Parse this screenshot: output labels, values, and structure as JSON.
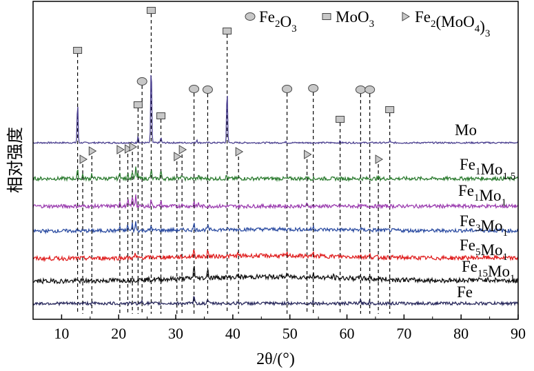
{
  "chart_data": {
    "type": "line",
    "title": "",
    "xlabel": "2θ/(°)",
    "ylabel": "相对强度",
    "xlim": [
      5,
      90
    ],
    "xticks": [
      10,
      20,
      30,
      40,
      50,
      60,
      70,
      80,
      90
    ],
    "yticks_shown": false,
    "grid": false,
    "legend_position": "top-right",
    "legend": [
      {
        "marker": "circle",
        "name": "Fe2O3",
        "parts": [
          [
            "Fe",
            ""
          ],
          [
            "2",
            "sub"
          ],
          [
            "O",
            ""
          ],
          [
            "3",
            "sub"
          ]
        ]
      },
      {
        "marker": "square",
        "name": "MoO3",
        "parts": [
          [
            "MoO",
            ""
          ],
          [
            "3",
            "sub"
          ]
        ]
      },
      {
        "marker": "triangle",
        "name": "Fe2(MoO4)3",
        "parts": [
          [
            "Fe",
            ""
          ],
          [
            "2",
            "sub"
          ],
          [
            "(MoO",
            ""
          ],
          [
            "4",
            "sub"
          ],
          [
            ")",
            ""
          ],
          [
            "3",
            "sub"
          ]
        ]
      }
    ],
    "series": [
      {
        "name": "Mo",
        "parts": [
          [
            "Mo",
            ""
          ]
        ],
        "color": "#4a3f8f",
        "baseline": 0.0,
        "noise": 0.15,
        "hump": 0.0,
        "peaks": [
          [
            12.8,
            8.0
          ],
          [
            23.4,
            1.4
          ],
          [
            25.7,
            16.0
          ],
          [
            27.4,
            1.0
          ],
          [
            33.7,
            0.6
          ],
          [
            39.0,
            10.8
          ],
          [
            49.3,
            0.3
          ],
          [
            58.8,
            0.3
          ],
          [
            67.5,
            0.4
          ]
        ]
      },
      {
        "name": "Fe1Mo1.5",
        "parts": [
          [
            "Fe",
            ""
          ],
          [
            "1",
            "sub"
          ],
          [
            "Mo",
            ""
          ],
          [
            "1.5",
            "sub"
          ]
        ],
        "color": "#2e7d32",
        "baseline": 0.0,
        "noise": 0.35,
        "hump": 0.0,
        "peaks": [
          [
            12.8,
            1.6
          ],
          [
            13.7,
            0.8
          ],
          [
            15.3,
            1.0
          ],
          [
            20.2,
            1.4
          ],
          [
            21.6,
            1.2
          ],
          [
            22.4,
            1.5
          ],
          [
            23.0,
            2.2
          ],
          [
            23.4,
            1.0
          ],
          [
            25.7,
            1.7
          ],
          [
            27.4,
            1.6
          ],
          [
            30.2,
            0.8
          ],
          [
            31.1,
            0.8
          ],
          [
            34.0,
            0.7
          ],
          [
            38.9,
            0.6
          ],
          [
            41.0,
            0.4
          ],
          [
            53.0,
            0.6
          ],
          [
            65.5,
            0.3
          ]
        ]
      },
      {
        "name": "Fe1Mo1",
        "parts": [
          [
            "Fe",
            ""
          ],
          [
            "1",
            "sub"
          ],
          [
            "Mo",
            ""
          ],
          [
            "1",
            "sub"
          ]
        ],
        "color": "#9c3fb0",
        "baseline": 0.0,
        "noise": 0.35,
        "hump": 0.0,
        "peaks": [
          [
            20.2,
            1.0
          ],
          [
            21.6,
            1.4
          ],
          [
            22.4,
            2.0
          ],
          [
            23.0,
            2.4
          ],
          [
            25.7,
            1.3
          ],
          [
            27.4,
            1.0
          ],
          [
            31.1,
            0.7
          ],
          [
            33.2,
            0.9
          ],
          [
            34.0,
            0.6
          ],
          [
            53.0,
            0.4
          ]
        ]
      },
      {
        "name": "Fe3Mo1",
        "parts": [
          [
            "Fe",
            ""
          ],
          [
            "3",
            "sub"
          ],
          [
            "Mo",
            ""
          ],
          [
            "1",
            "sub"
          ]
        ],
        "color": "#2f4fa3",
        "baseline": 0.0,
        "noise": 0.35,
        "hump": 0.6,
        "peaks": [
          [
            20.2,
            0.9
          ],
          [
            21.6,
            1.1
          ],
          [
            22.4,
            1.3
          ],
          [
            23.0,
            1.7
          ],
          [
            25.7,
            0.9
          ],
          [
            33.2,
            1.3
          ],
          [
            35.6,
            0.8
          ],
          [
            54.1,
            0.5
          ],
          [
            62.4,
            0.4
          ]
        ]
      },
      {
        "name": "Fe5Mo1",
        "parts": [
          [
            "Fe",
            ""
          ],
          [
            "5",
            "sub"
          ],
          [
            "Mo",
            ""
          ],
          [
            "1",
            "sub"
          ]
        ],
        "color": "#e02020",
        "baseline": 0.0,
        "noise": 0.4,
        "hump": 1.0,
        "peaks": [
          [
            22.9,
            0.8
          ],
          [
            33.2,
            1.6
          ],
          [
            35.6,
            1.2
          ],
          [
            40.9,
            0.4
          ],
          [
            49.5,
            0.4
          ],
          [
            54.1,
            0.6
          ],
          [
            62.4,
            0.5
          ],
          [
            64.0,
            0.4
          ]
        ]
      },
      {
        "name": "Fe15Mo1",
        "parts": [
          [
            "Fe",
            ""
          ],
          [
            "15",
            "sub"
          ],
          [
            "Mo",
            ""
          ],
          [
            "1",
            "sub"
          ]
        ],
        "color": "#111111",
        "baseline": 0.0,
        "noise": 0.45,
        "hump": 1.6,
        "peaks": [
          [
            24.1,
            0.6
          ],
          [
            33.2,
            3.0
          ],
          [
            35.6,
            2.1
          ],
          [
            40.9,
            0.5
          ],
          [
            49.5,
            0.7
          ],
          [
            54.1,
            1.2
          ],
          [
            57.6,
            0.4
          ],
          [
            62.4,
            0.9
          ],
          [
            64.0,
            0.8
          ]
        ]
      },
      {
        "name": "Fe",
        "parts": [
          [
            "Fe",
            ""
          ]
        ],
        "color": "#2b2b5e",
        "baseline": 0.0,
        "noise": 0.3,
        "hump": 0.0,
        "peaks": [
          [
            24.1,
            0.6
          ],
          [
            33.2,
            1.5
          ],
          [
            35.6,
            1.0
          ],
          [
            40.9,
            0.3
          ],
          [
            49.5,
            0.4
          ],
          [
            54.1,
            0.7
          ],
          [
            62.4,
            0.6
          ],
          [
            64.0,
            0.5
          ]
        ]
      }
    ],
    "reference_peaks": {
      "Fe2O3": [
        24.1,
        33.2,
        35.6,
        49.5,
        54.1,
        62.4,
        64.0
      ],
      "MoO3": [
        12.8,
        23.4,
        25.7,
        27.4,
        39.0,
        58.8,
        67.5
      ],
      "Fe2(MoO4)3": [
        13.7,
        15.3,
        20.2,
        21.6,
        22.4,
        30.2,
        31.1,
        41.0,
        53.0,
        65.5
      ]
    }
  }
}
